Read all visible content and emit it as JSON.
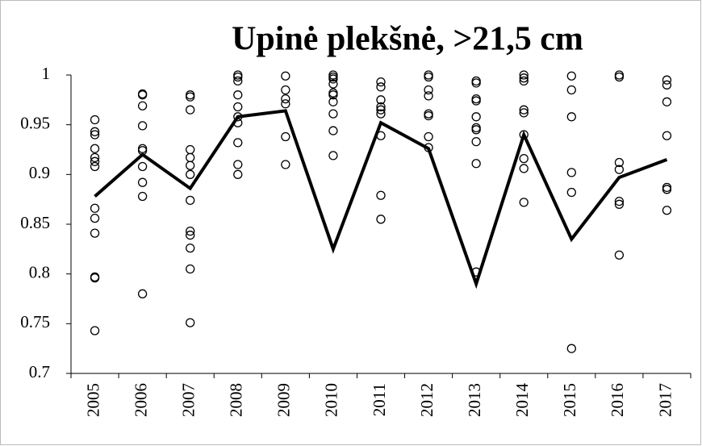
{
  "chart_data": {
    "type": "line",
    "title": "Upinė plekšnė, >21,5 cm",
    "categories": [
      "2005",
      "2006",
      "2007",
      "2008",
      "2009",
      "2010",
      "2011",
      "2012",
      "2013",
      "2014",
      "2015",
      "2016",
      "2017"
    ],
    "series": [
      {
        "color": "#000000",
        "values": [
          0.878,
          0.92,
          0.886,
          0.958,
          0.964,
          0.825,
          0.952,
          0.926,
          0.79,
          0.94,
          0.835,
          0.897,
          0.915
        ]
      }
    ],
    "points": [
      [
        0.955,
        0.943,
        0.94,
        0.926,
        0.917,
        0.913,
        0.908,
        0.866,
        0.856,
        0.841,
        0.797,
        0.796,
        0.743
      ],
      [
        0.981,
        0.98,
        0.969,
        0.949,
        0.926,
        0.924,
        0.908,
        0.892,
        0.878,
        0.78
      ],
      [
        0.98,
        0.978,
        0.965,
        0.925,
        0.917,
        0.909,
        0.9,
        0.874,
        0.843,
        0.839,
        0.826,
        0.805,
        0.751
      ],
      [
        1,
        0.998,
        0.994,
        0.98,
        0.968,
        0.958,
        0.952,
        0.932,
        0.91,
        0.9
      ],
      [
        0.999,
        0.985,
        0.976,
        0.971,
        0.938,
        0.91
      ],
      [
        1,
        0.998,
        0.996,
        0.991,
        0.982,
        0.98,
        0.973,
        0.961,
        0.944,
        0.919
      ],
      [
        0.993,
        0.988,
        0.975,
        0.968,
        0.965,
        0.961,
        0.939,
        0.879,
        0.855
      ],
      [
        1,
        0.998,
        0.985,
        0.979,
        0.961,
        0.959,
        0.938,
        0.927
      ],
      [
        0.994,
        0.992,
        0.976,
        0.974,
        0.958,
        0.947,
        0.945,
        0.933,
        0.911,
        0.802
      ],
      [
        1,
        0.997,
        0.994,
        0.965,
        0.962,
        0.94,
        0.916,
        0.906,
        0.872
      ],
      [
        0.999,
        0.985,
        0.958,
        0.902,
        0.882,
        0.725
      ],
      [
        1,
        0.998,
        0.912,
        0.905,
        0.873,
        0.87,
        0.819
      ],
      [
        0.995,
        0.99,
        0.973,
        0.939,
        0.887,
        0.885,
        0.864
      ]
    ],
    "ylim": [
      0.7,
      1
    ],
    "yticks": [
      0.7,
      0.75,
      0.8,
      0.85,
      0.9,
      0.95,
      1
    ]
  }
}
